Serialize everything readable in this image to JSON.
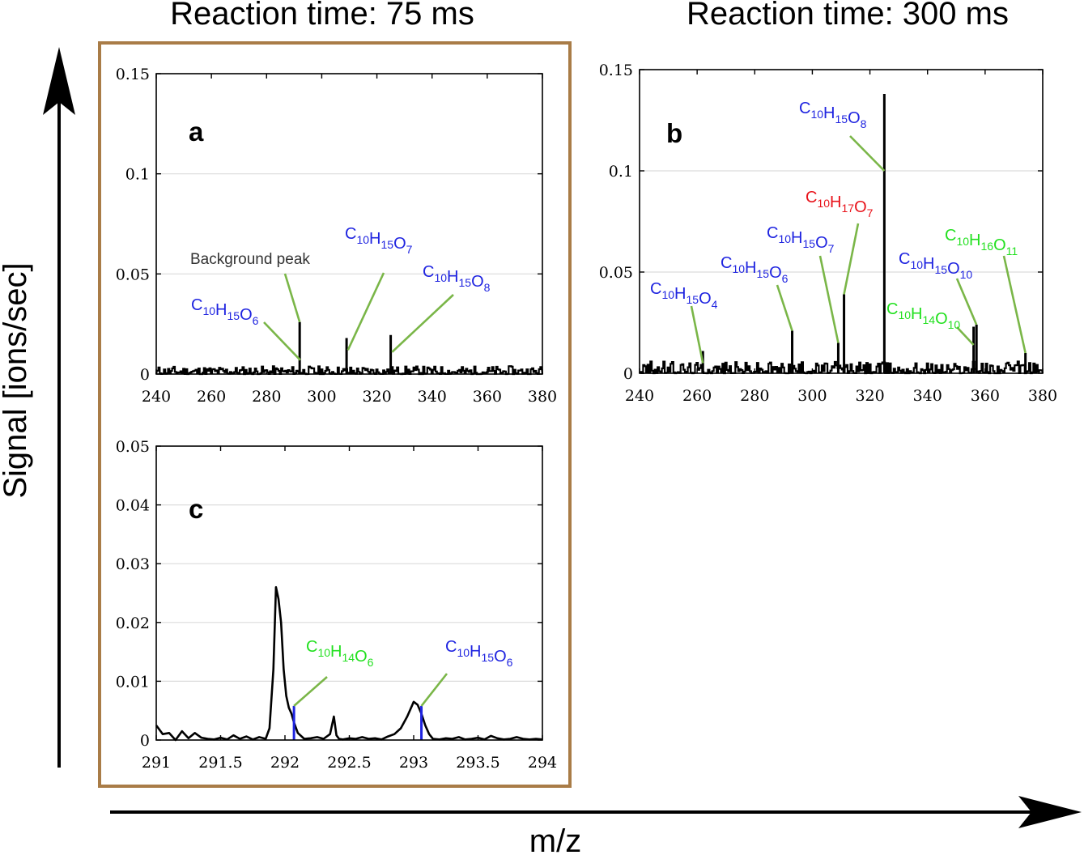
{
  "titles": {
    "left": "Reaction time: 75 ms",
    "right": "Reaction time: 300 ms",
    "ylabel": "Signal [ions/sec]",
    "xlabel": "m/z"
  },
  "colors": {
    "frame": "#a97c47",
    "leader": "#7ab648",
    "blue": "#1f24e0",
    "red": "#e8131b",
    "green": "#22e01f",
    "grid": "#dcdcdc",
    "trace": "#000000",
    "marker": "#1f24e0"
  },
  "chart_data": [
    {
      "id": "a",
      "panel_label": "a",
      "type": "bar",
      "xlabel": "m/z",
      "ylabel": "Signal [ions/sec]",
      "xlim": [
        240,
        380
      ],
      "ylim": [
        0,
        0.15
      ],
      "xticks": [
        "240",
        "260",
        "280",
        "300",
        "320",
        "340",
        "360",
        "380"
      ],
      "yticks": [
        "0",
        "0.05",
        "0.1",
        "0.15"
      ],
      "grid": true,
      "peaks": [
        {
          "x": 292.0,
          "y": 0.026
        },
        {
          "x": 309.0,
          "y": 0.018
        },
        {
          "x": 325.0,
          "y": 0.0195
        }
      ],
      "noise_level": 0.004,
      "annotations": [
        {
          "text": "Background peak",
          "x": 292.0,
          "y": 0.026
        },
        {
          "formula": [
            [
              "C",
              "10"
            ],
            [
              "H",
              "15"
            ],
            [
              "O",
              "6"
            ]
          ],
          "color": "blue",
          "x": 292.2,
          "y": 0.007
        },
        {
          "formula": [
            [
              "C",
              "10"
            ],
            [
              "H",
              "15"
            ],
            [
              "O",
              "7"
            ]
          ],
          "color": "blue",
          "x": 309.5,
          "y": 0.012
        },
        {
          "formula": [
            [
              "C",
              "10"
            ],
            [
              "H",
              "15"
            ],
            [
              "O",
              "8"
            ]
          ],
          "color": "blue",
          "x": 325.5,
          "y": 0.011
        }
      ]
    },
    {
      "id": "b",
      "panel_label": "b",
      "type": "bar",
      "xlabel": "m/z",
      "ylabel": "Signal [ions/sec]",
      "xlim": [
        240,
        380
      ],
      "ylim": [
        0,
        0.15
      ],
      "xticks": [
        "240",
        "260",
        "280",
        "300",
        "320",
        "340",
        "360",
        "380"
      ],
      "yticks": [
        "0",
        "0.05",
        "0.1",
        "0.15"
      ],
      "grid": true,
      "peaks": [
        {
          "x": 262.0,
          "y": 0.011
        },
        {
          "x": 293.0,
          "y": 0.021
        },
        {
          "x": 309.0,
          "y": 0.015
        },
        {
          "x": 311.0,
          "y": 0.039
        },
        {
          "x": 325.0,
          "y": 0.138
        },
        {
          "x": 356.0,
          "y": 0.023
        },
        {
          "x": 357.0,
          "y": 0.024
        },
        {
          "x": 374.0,
          "y": 0.01
        }
      ],
      "noise_level": 0.006,
      "annotations": [
        {
          "formula": [
            [
              "C",
              "10"
            ],
            [
              "H",
              "15"
            ],
            [
              "O",
              "8"
            ]
          ],
          "color": "blue",
          "x": 325.0,
          "y": 0.1
        },
        {
          "formula": [
            [
              "C",
              "10"
            ],
            [
              "H",
              "17"
            ],
            [
              "O",
              "7"
            ]
          ],
          "color": "red",
          "x": 311.0,
          "y": 0.039
        },
        {
          "formula": [
            [
              "C",
              "10"
            ],
            [
              "H",
              "15"
            ],
            [
              "O",
              "7"
            ]
          ],
          "color": "blue",
          "x": 309.0,
          "y": 0.015
        },
        {
          "formula": [
            [
              "C",
              "10"
            ],
            [
              "H",
              "15"
            ],
            [
              "O",
              "6"
            ]
          ],
          "color": "blue",
          "x": 293.0,
          "y": 0.021
        },
        {
          "formula": [
            [
              "C",
              "10"
            ],
            [
              "H",
              "15"
            ],
            [
              "O",
              "4"
            ]
          ],
          "color": "blue",
          "x": 262.0,
          "y": 0.005
        },
        {
          "formula": [
            [
              "C",
              "10"
            ],
            [
              "H",
              "15"
            ],
            [
              "O",
              "10"
            ]
          ],
          "color": "blue",
          "x": 357.0,
          "y": 0.024
        },
        {
          "formula": [
            [
              "C",
              "10"
            ],
            [
              "H",
              "14"
            ],
            [
              "O",
              "10"
            ]
          ],
          "color": "green",
          "x": 356.0,
          "y": 0.014
        },
        {
          "formula": [
            [
              "C",
              "10"
            ],
            [
              "H",
              "16"
            ],
            [
              "O",
              "11"
            ]
          ],
          "color": "green",
          "x": 374.0,
          "y": 0.01
        }
      ]
    },
    {
      "id": "c",
      "panel_label": "c",
      "type": "line",
      "xlabel": "m/z",
      "ylabel": "Signal [ions/sec]",
      "xlim": [
        291,
        294
      ],
      "ylim": [
        0,
        0.05
      ],
      "xticks": [
        "291",
        "291.5",
        "292",
        "292.5",
        "293",
        "293.5",
        "294"
      ],
      "yticks": [
        "0",
        "0.01",
        "0.02",
        "0.03",
        "0.04",
        "0.05"
      ],
      "grid": true,
      "x": [
        291.0,
        291.05,
        291.1,
        291.15,
        291.2,
        291.25,
        291.3,
        291.35,
        291.4,
        291.45,
        291.5,
        291.55,
        291.6,
        291.65,
        291.7,
        291.75,
        291.8,
        291.85,
        291.88,
        291.91,
        291.93,
        291.95,
        291.97,
        291.99,
        292.01,
        292.03,
        292.05,
        292.07,
        292.1,
        292.15,
        292.2,
        292.25,
        292.3,
        292.35,
        292.38,
        292.4,
        292.42,
        292.45,
        292.5,
        292.55,
        292.6,
        292.65,
        292.7,
        292.75,
        292.8,
        292.85,
        292.9,
        292.95,
        293.0,
        293.03,
        293.06,
        293.09,
        293.12,
        293.15,
        293.2,
        293.25,
        293.3,
        293.35,
        293.4,
        293.45,
        293.5,
        293.55,
        293.6,
        293.65,
        293.7,
        293.75,
        293.8,
        293.85,
        293.9,
        293.95,
        294.0
      ],
      "y": [
        0.0025,
        0.001,
        0.0012,
        0.0,
        0.0015,
        0.0003,
        0.0012,
        0.0004,
        0.0002,
        0.0001,
        0.0004,
        0.0001,
        0.0008,
        0.0002,
        0.0006,
        0.0001,
        0.0005,
        0.0002,
        0.002,
        0.012,
        0.026,
        0.024,
        0.02,
        0.012,
        0.0075,
        0.0055,
        0.0045,
        0.003,
        0.0012,
        0.0002,
        0.0003,
        0.0005,
        0.0002,
        0.001,
        0.004,
        0.0008,
        0.0002,
        0.0001,
        0.0003,
        0.0002,
        0.0005,
        0.0002,
        0.0003,
        0.0001,
        0.0006,
        0.001,
        0.002,
        0.004,
        0.0065,
        0.006,
        0.0045,
        0.0025,
        0.001,
        0.0002,
        0.0001,
        0.0003,
        0.0002,
        0.0005,
        0.0001,
        0.0002,
        0.0004,
        0.0001,
        0.0007,
        0.0003,
        0.0001,
        0.0002,
        0.0005,
        0.0002,
        0.0001,
        0.0002,
        0.0001
      ],
      "markers": [
        {
          "x": 292.07,
          "y": 0.0058
        },
        {
          "x": 293.06,
          "y": 0.0058
        }
      ],
      "annotations": [
        {
          "formula": [
            [
              "C",
              "10"
            ],
            [
              "H",
              "14"
            ],
            [
              "O",
              "6"
            ]
          ],
          "color": "green",
          "x": 292.07,
          "y": 0.0058
        },
        {
          "formula": [
            [
              "C",
              "10"
            ],
            [
              "H",
              "15"
            ],
            [
              "O",
              "6"
            ]
          ],
          "color": "blue",
          "x": 293.06,
          "y": 0.0058
        }
      ]
    }
  ]
}
